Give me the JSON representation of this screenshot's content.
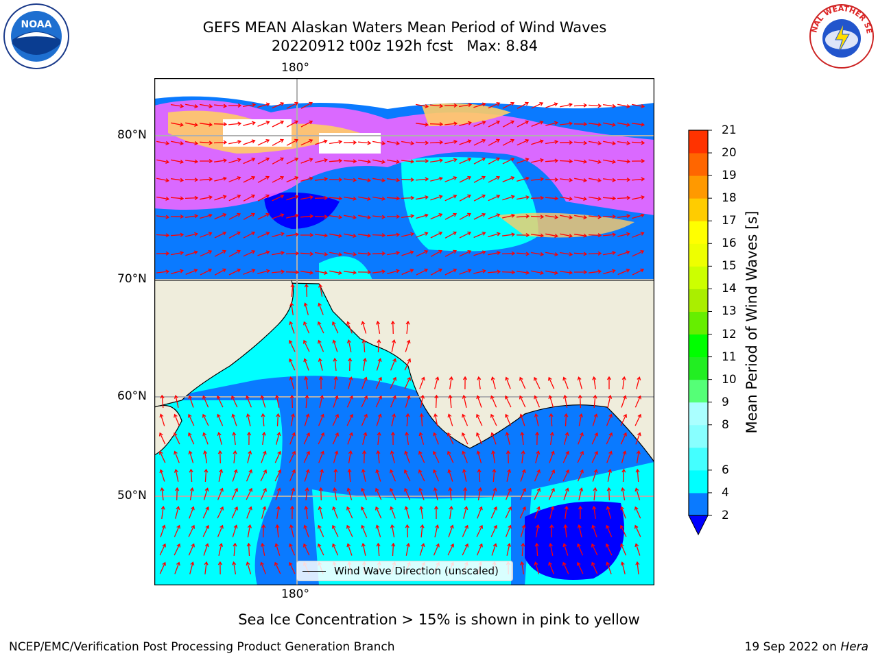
{
  "header": {
    "title_line1": "GEFS MEAN Alaskan Waters Mean Period of Wind Waves",
    "title_line2": "20220912 t00z 192h fcst   Max: 8.84"
  },
  "logos": {
    "left": "NOAA",
    "right": "NATIONAL WEATHER SERVICE"
  },
  "map": {
    "lon_label_top": "180°",
    "lon_label_bottom": "180°",
    "lat_labels": [
      "80°N",
      "70°N",
      "60°N",
      "50°N"
    ],
    "legend_label": "Wind Wave Direction (unscaled)",
    "colors": {
      "land": "#efeddc",
      "sea_ice_low": "#ff66ff",
      "sea_ice_high": "#ffcc44",
      "period_2_4": "#0a7aff",
      "period_4_6": "#00ffff",
      "period_6_8": "#55ffff",
      "under_2": "#0000ff",
      "arrow": "#ff0000"
    }
  },
  "colorbar": {
    "title": "Mean Period of Wind Waves [s]",
    "levels": [
      "2",
      "4",
      "6",
      "7",
      "8",
      "9",
      "10",
      "11",
      "12",
      "13",
      "14",
      "15",
      "16",
      "17",
      "18",
      "19",
      "20",
      "21"
    ],
    "level_values": [
      2,
      4,
      6,
      7,
      8,
      9,
      10,
      11,
      12,
      13,
      14,
      15,
      16,
      17,
      18,
      19,
      20,
      21
    ],
    "tick_labels": [
      "2",
      "4",
      "6",
      "8",
      "9",
      "10",
      "11",
      "12",
      "13",
      "14",
      "15",
      "16",
      "17",
      "18",
      "19",
      "20",
      "21"
    ],
    "colors": [
      "#0a7aff",
      "#00ffff",
      "#44ffff",
      "#88ffff",
      "#aaffff",
      "#55ff77",
      "#22ee22",
      "#00ff00",
      "#66ee00",
      "#aaee00",
      "#ccff00",
      "#eeff00",
      "#ffff00",
      "#ffcc00",
      "#ff9900",
      "#ff6600",
      "#ff3300"
    ],
    "under_color": "#0000ff"
  },
  "footer": {
    "note": "Sea Ice Concentration > 15% is shown in pink to yellow",
    "left": "NCEP/EMC/Verification Post Processing Product Generation Branch",
    "right_date": "19 Sep 2022 on ",
    "right_host": "Hera"
  }
}
